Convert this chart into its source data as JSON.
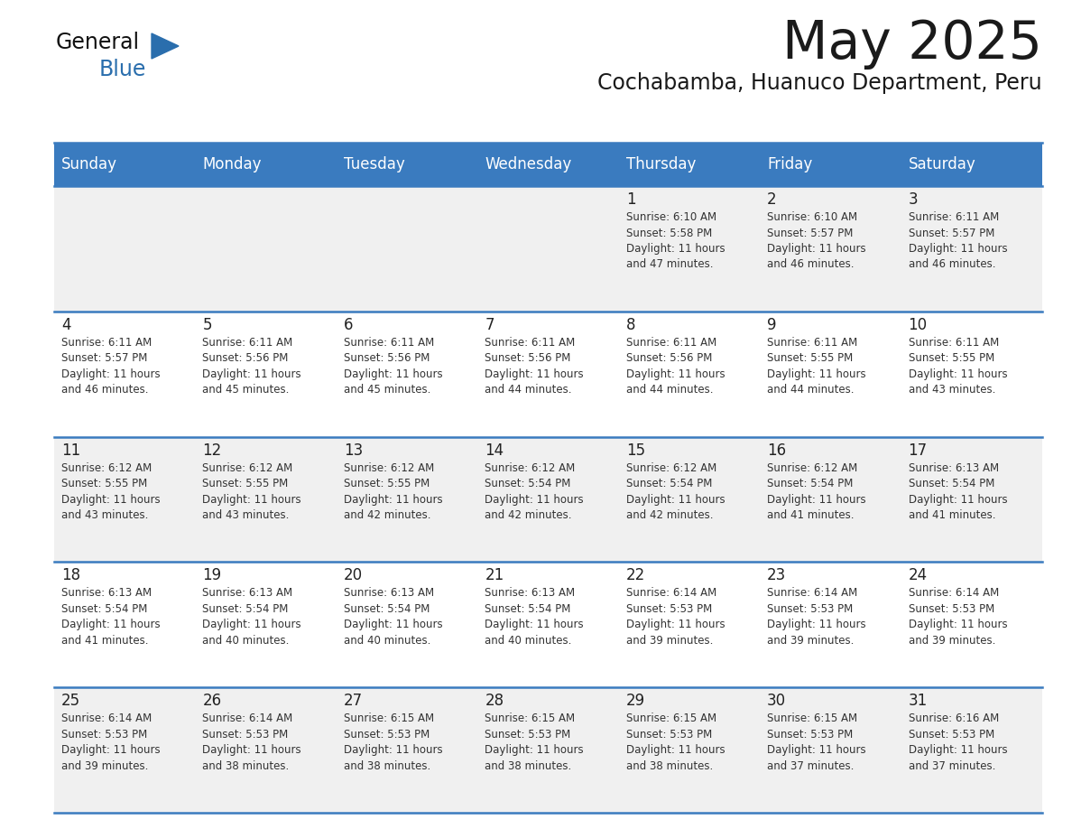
{
  "title": "May 2025",
  "subtitle": "Cochabamba, Huanuco Department, Peru",
  "days_of_week": [
    "Sunday",
    "Monday",
    "Tuesday",
    "Wednesday",
    "Thursday",
    "Friday",
    "Saturday"
  ],
  "header_bg": "#3a7bbf",
  "header_text": "#ffffff",
  "row_bg_odd": "#f0f0f0",
  "row_bg_even": "#ffffff",
  "day_num_color": "#222222",
  "cell_text_color": "#333333",
  "grid_line_color": "#3a7bbf",
  "title_color": "#1a1a1a",
  "subtitle_color": "#1a1a1a",
  "logo_general_color": "#111111",
  "logo_blue_color": "#2a6ead",
  "weeks": [
    [
      {
        "day": "",
        "sunrise": "",
        "sunset": "",
        "daylight": ""
      },
      {
        "day": "",
        "sunrise": "",
        "sunset": "",
        "daylight": ""
      },
      {
        "day": "",
        "sunrise": "",
        "sunset": "",
        "daylight": ""
      },
      {
        "day": "",
        "sunrise": "",
        "sunset": "",
        "daylight": ""
      },
      {
        "day": "1",
        "sunrise": "6:10 AM",
        "sunset": "5:58 PM",
        "daylight": "11 hours\nand 47 minutes."
      },
      {
        "day": "2",
        "sunrise": "6:10 AM",
        "sunset": "5:57 PM",
        "daylight": "11 hours\nand 46 minutes."
      },
      {
        "day": "3",
        "sunrise": "6:11 AM",
        "sunset": "5:57 PM",
        "daylight": "11 hours\nand 46 minutes."
      }
    ],
    [
      {
        "day": "4",
        "sunrise": "6:11 AM",
        "sunset": "5:57 PM",
        "daylight": "11 hours\nand 46 minutes."
      },
      {
        "day": "5",
        "sunrise": "6:11 AM",
        "sunset": "5:56 PM",
        "daylight": "11 hours\nand 45 minutes."
      },
      {
        "day": "6",
        "sunrise": "6:11 AM",
        "sunset": "5:56 PM",
        "daylight": "11 hours\nand 45 minutes."
      },
      {
        "day": "7",
        "sunrise": "6:11 AM",
        "sunset": "5:56 PM",
        "daylight": "11 hours\nand 44 minutes."
      },
      {
        "day": "8",
        "sunrise": "6:11 AM",
        "sunset": "5:56 PM",
        "daylight": "11 hours\nand 44 minutes."
      },
      {
        "day": "9",
        "sunrise": "6:11 AM",
        "sunset": "5:55 PM",
        "daylight": "11 hours\nand 44 minutes."
      },
      {
        "day": "10",
        "sunrise": "6:11 AM",
        "sunset": "5:55 PM",
        "daylight": "11 hours\nand 43 minutes."
      }
    ],
    [
      {
        "day": "11",
        "sunrise": "6:12 AM",
        "sunset": "5:55 PM",
        "daylight": "11 hours\nand 43 minutes."
      },
      {
        "day": "12",
        "sunrise": "6:12 AM",
        "sunset": "5:55 PM",
        "daylight": "11 hours\nand 43 minutes."
      },
      {
        "day": "13",
        "sunrise": "6:12 AM",
        "sunset": "5:55 PM",
        "daylight": "11 hours\nand 42 minutes."
      },
      {
        "day": "14",
        "sunrise": "6:12 AM",
        "sunset": "5:54 PM",
        "daylight": "11 hours\nand 42 minutes."
      },
      {
        "day": "15",
        "sunrise": "6:12 AM",
        "sunset": "5:54 PM",
        "daylight": "11 hours\nand 42 minutes."
      },
      {
        "day": "16",
        "sunrise": "6:12 AM",
        "sunset": "5:54 PM",
        "daylight": "11 hours\nand 41 minutes."
      },
      {
        "day": "17",
        "sunrise": "6:13 AM",
        "sunset": "5:54 PM",
        "daylight": "11 hours\nand 41 minutes."
      }
    ],
    [
      {
        "day": "18",
        "sunrise": "6:13 AM",
        "sunset": "5:54 PM",
        "daylight": "11 hours\nand 41 minutes."
      },
      {
        "day": "19",
        "sunrise": "6:13 AM",
        "sunset": "5:54 PM",
        "daylight": "11 hours\nand 40 minutes."
      },
      {
        "day": "20",
        "sunrise": "6:13 AM",
        "sunset": "5:54 PM",
        "daylight": "11 hours\nand 40 minutes."
      },
      {
        "day": "21",
        "sunrise": "6:13 AM",
        "sunset": "5:54 PM",
        "daylight": "11 hours\nand 40 minutes."
      },
      {
        "day": "22",
        "sunrise": "6:14 AM",
        "sunset": "5:53 PM",
        "daylight": "11 hours\nand 39 minutes."
      },
      {
        "day": "23",
        "sunrise": "6:14 AM",
        "sunset": "5:53 PM",
        "daylight": "11 hours\nand 39 minutes."
      },
      {
        "day": "24",
        "sunrise": "6:14 AM",
        "sunset": "5:53 PM",
        "daylight": "11 hours\nand 39 minutes."
      }
    ],
    [
      {
        "day": "25",
        "sunrise": "6:14 AM",
        "sunset": "5:53 PM",
        "daylight": "11 hours\nand 39 minutes."
      },
      {
        "day": "26",
        "sunrise": "6:14 AM",
        "sunset": "5:53 PM",
        "daylight": "11 hours\nand 38 minutes."
      },
      {
        "day": "27",
        "sunrise": "6:15 AM",
        "sunset": "5:53 PM",
        "daylight": "11 hours\nand 38 minutes."
      },
      {
        "day": "28",
        "sunrise": "6:15 AM",
        "sunset": "5:53 PM",
        "daylight": "11 hours\nand 38 minutes."
      },
      {
        "day": "29",
        "sunrise": "6:15 AM",
        "sunset": "5:53 PM",
        "daylight": "11 hours\nand 38 minutes."
      },
      {
        "day": "30",
        "sunrise": "6:15 AM",
        "sunset": "5:53 PM",
        "daylight": "11 hours\nand 37 minutes."
      },
      {
        "day": "31",
        "sunrise": "6:16 AM",
        "sunset": "5:53 PM",
        "daylight": "11 hours\nand 37 minutes."
      }
    ]
  ]
}
